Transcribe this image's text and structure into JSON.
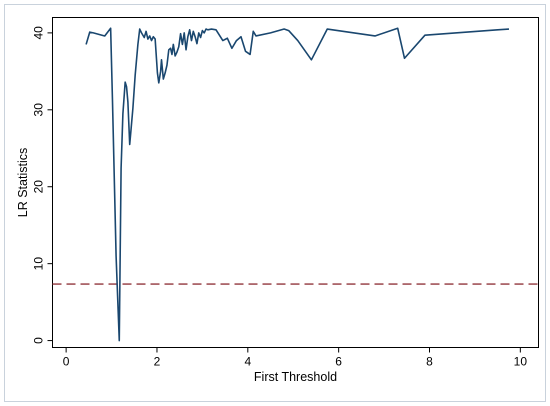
{
  "chart_data": {
    "type": "line",
    "xlabel": "First Threshold",
    "ylabel": "LR Statistics",
    "xlim": [
      -0.3,
      10.4
    ],
    "ylim": [
      -0.9,
      42.0
    ],
    "xticks": [
      "0",
      "2",
      "4",
      "6",
      "8",
      "10"
    ],
    "xtick_values": [
      0,
      2,
      4,
      6,
      8,
      10
    ],
    "yticks": [
      "0",
      "10",
      "20",
      "30",
      "40"
    ],
    "ytick_values": [
      0,
      10,
      20,
      30,
      40
    ],
    "grid": false,
    "colors": {
      "line": "#1a476f",
      "reference": "#90353b",
      "frame": "#000000",
      "outer_frame": "#c9d2dc"
    },
    "series": [
      {
        "x": [
          0.44,
          0.52,
          0.6,
          0.85,
          0.98,
          1.02,
          1.1,
          1.17,
          1.21,
          1.25,
          1.3,
          1.33,
          1.36,
          1.4,
          1.43,
          1.47,
          1.52,
          1.58,
          1.62,
          1.66,
          1.72,
          1.76,
          1.8,
          1.84,
          1.88,
          1.92,
          1.96,
          2.01,
          2.04,
          2.08,
          2.1,
          2.14,
          2.18,
          2.22,
          2.26,
          2.3,
          2.33,
          2.36,
          2.4,
          2.44,
          2.48,
          2.52,
          2.56,
          2.6,
          2.64,
          2.68,
          2.72,
          2.76,
          2.8,
          2.84,
          2.88,
          2.92,
          2.96,
          3.0,
          3.04,
          3.08,
          3.12,
          3.2,
          3.3,
          3.45,
          3.55,
          3.65,
          3.75,
          3.85,
          3.95,
          4.05,
          4.12,
          4.18,
          4.5,
          4.8,
          4.9,
          5.1,
          5.4,
          5.75,
          6.8,
          7.3,
          7.45,
          7.9,
          9.5,
          9.75
        ],
        "y": [
          38.5,
          40.1,
          40.0,
          39.6,
          40.6,
          31.3,
          11.0,
          0.0,
          22.4,
          29.5,
          33.6,
          33.0,
          31.0,
          25.5,
          27.5,
          30.2,
          34.5,
          38.5,
          40.5,
          40.0,
          39.4,
          40.2,
          39.2,
          39.6,
          39.0,
          39.5,
          39.2,
          34.8,
          33.5,
          35.0,
          36.5,
          34.0,
          34.8,
          35.8,
          37.8,
          38.0,
          37.2,
          38.5,
          37.0,
          37.5,
          38.2,
          39.9,
          38.5,
          40.0,
          37.8,
          39.5,
          40.4,
          39.0,
          40.2,
          39.5,
          38.6,
          40.0,
          39.4,
          40.3,
          40.0,
          40.5,
          40.4,
          40.5,
          40.4,
          39.0,
          39.3,
          38.0,
          39.0,
          39.5,
          37.6,
          37.2,
          40.2,
          39.6,
          40.0,
          40.5,
          40.3,
          39.0,
          36.5,
          40.5,
          39.6,
          40.6,
          36.7,
          39.7,
          40.4,
          40.5
        ]
      }
    ],
    "reference_lines": [
      {
        "axis": "y",
        "value": 7.35,
        "style": "dashed"
      }
    ]
  }
}
